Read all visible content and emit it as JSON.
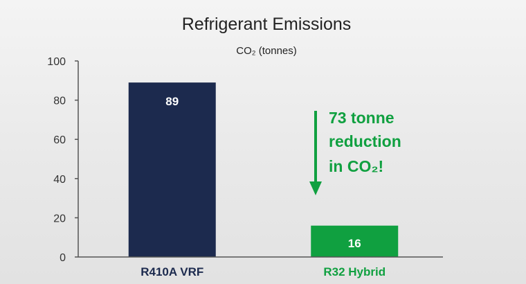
{
  "chart_data": {
    "type": "bar",
    "title": "Refrigerant Emissions",
    "subtitle": "CO₂ (tonnes)",
    "categories": [
      "R410A VRF",
      "R32 Hybrid"
    ],
    "values": [
      89,
      16
    ],
    "data_labels": [
      "89",
      "16"
    ],
    "bar_colors": [
      "#1c2a4e",
      "#10a040"
    ],
    "category_label_colors": [
      "#1c2a4e",
      "#10a040"
    ],
    "ylim": [
      0,
      100
    ],
    "yticks": [
      0,
      20,
      40,
      60,
      80,
      100
    ],
    "grid": false,
    "annotation": {
      "lines": [
        "73 tonne",
        "reduction",
        "in CO₂!"
      ],
      "color": "#10a040",
      "arrow": "down"
    }
  }
}
